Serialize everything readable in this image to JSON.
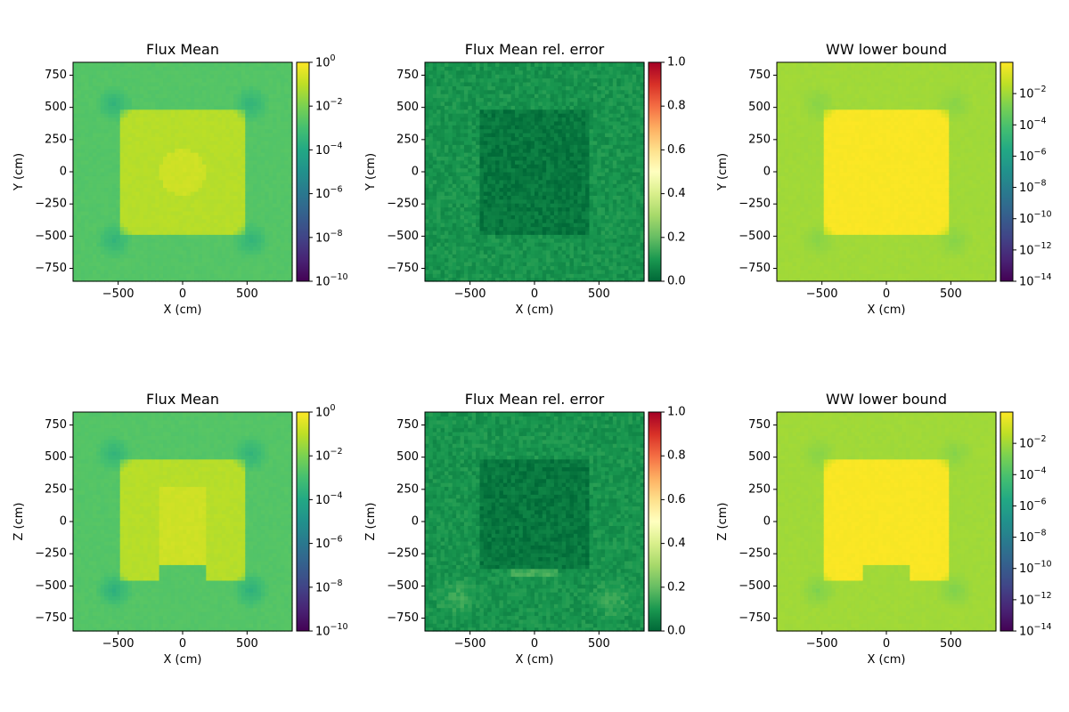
{
  "chart_data": [
    {
      "type": "heatmap",
      "title": "Flux Mean",
      "xlabel": "X (cm)",
      "ylabel": "Y (cm)",
      "xlim": [
        -850,
        850
      ],
      "ylim": [
        -850,
        850
      ],
      "xticks": [
        -500,
        0,
        500
      ],
      "yticks": [
        -750,
        -500,
        -250,
        0,
        250,
        500,
        750
      ],
      "colormap": "viridis",
      "colorbar": {
        "scale": "log",
        "range_exp": [
          -10,
          0
        ],
        "tick_exps": [
          -10,
          -8,
          -6,
          -4,
          -2,
          0
        ],
        "base": "10"
      },
      "regions": [
        {
          "shape": "background",
          "value": 0.002
        },
        {
          "shape": "rect",
          "x": [
            -480,
            480
          ],
          "y": [
            -480,
            480
          ],
          "value": 0.08
        },
        {
          "shape": "circle",
          "center": [
            0,
            0
          ],
          "radius": 175,
          "value": 0.18
        },
        {
          "shape": "spot",
          "center": [
            -530,
            530
          ],
          "radius": 150,
          "value": 0.0003
        },
        {
          "shape": "spot",
          "center": [
            530,
            530
          ],
          "radius": 150,
          "value": 0.0003
        },
        {
          "shape": "spot",
          "center": [
            -530,
            -530
          ],
          "radius": 150,
          "value": 0.0003
        },
        {
          "shape": "spot",
          "center": [
            530,
            -530
          ],
          "radius": 150,
          "value": 0.0003
        }
      ]
    },
    {
      "type": "heatmap",
      "title": "Flux Mean rel. error",
      "xlabel": "X (cm)",
      "ylabel": "Y (cm)",
      "xlim": [
        -850,
        850
      ],
      "ylim": [
        -850,
        850
      ],
      "xticks": [
        -500,
        0,
        500
      ],
      "yticks": [
        -750,
        -500,
        -250,
        0,
        250,
        500,
        750
      ],
      "colormap": "RdYlGn_r",
      "colorbar": {
        "scale": "linear",
        "range": [
          0,
          1
        ],
        "ticks": [
          "0.0",
          "0.2",
          "0.4",
          "0.6",
          "0.8",
          "1.0"
        ]
      },
      "regions": [
        {
          "shape": "background",
          "value": 0.09
        },
        {
          "shape": "rect",
          "x": [
            -420,
            420
          ],
          "y": [
            -480,
            480
          ],
          "value": 0.03
        }
      ]
    },
    {
      "type": "heatmap",
      "title": "WW lower bound",
      "xlabel": "X (cm)",
      "ylabel": "Y (cm)",
      "xlim": [
        -850,
        850
      ],
      "ylim": [
        -850,
        850
      ],
      "xticks": [
        -500,
        0,
        500
      ],
      "yticks": [
        -750,
        -500,
        -250,
        0,
        250,
        500,
        750
      ],
      "colormap": "viridis",
      "colorbar": {
        "scale": "log",
        "range_exp": [
          -14,
          0
        ],
        "tick_exps": [
          -14,
          -12,
          -10,
          -8,
          -6,
          -4,
          -2
        ],
        "base": "10"
      },
      "regions": [
        {
          "shape": "background",
          "value": 0.01
        },
        {
          "shape": "rect",
          "x": [
            -480,
            480
          ],
          "y": [
            -480,
            480
          ],
          "value": 0.8
        },
        {
          "shape": "spot",
          "center": [
            -530,
            530
          ],
          "radius": 150,
          "value": 0.003
        },
        {
          "shape": "spot",
          "center": [
            530,
            530
          ],
          "radius": 150,
          "value": 0.003
        },
        {
          "shape": "spot",
          "center": [
            -530,
            -530
          ],
          "radius": 150,
          "value": 0.003
        },
        {
          "shape": "spot",
          "center": [
            530,
            -530
          ],
          "radius": 150,
          "value": 0.003
        }
      ]
    },
    {
      "type": "heatmap",
      "title": "Flux Mean",
      "xlabel": "X (cm)",
      "ylabel": "Z (cm)",
      "xlim": [
        -850,
        850
      ],
      "ylim": [
        -850,
        850
      ],
      "xticks": [
        -500,
        0,
        500
      ],
      "yticks": [
        -750,
        -500,
        -250,
        0,
        250,
        500,
        750
      ],
      "colormap": "viridis",
      "colorbar": {
        "scale": "log",
        "range_exp": [
          -10,
          0
        ],
        "tick_exps": [
          -10,
          -8,
          -6,
          -4,
          -2,
          0
        ],
        "base": "10"
      },
      "regions": [
        {
          "shape": "background",
          "value": 0.002
        },
        {
          "shape": "rect",
          "x": [
            -480,
            480
          ],
          "y": [
            -450,
            480
          ],
          "value": 0.08
        },
        {
          "shape": "rect",
          "x": [
            -175,
            175
          ],
          "y": [
            -320,
            270
          ],
          "value": 0.18
        },
        {
          "shape": "rect",
          "x": [
            -180,
            180
          ],
          "y": [
            -450,
            -340
          ],
          "value": 0.002
        },
        {
          "shape": "spot",
          "center": [
            -530,
            530
          ],
          "radius": 150,
          "value": 0.0003
        },
        {
          "shape": "spot",
          "center": [
            530,
            530
          ],
          "radius": 150,
          "value": 0.0003
        },
        {
          "shape": "spot",
          "center": [
            -530,
            -530
          ],
          "radius": 150,
          "value": 0.0002
        },
        {
          "shape": "spot",
          "center": [
            530,
            -530
          ],
          "radius": 150,
          "value": 0.0002
        }
      ]
    },
    {
      "type": "heatmap",
      "title": "Flux Mean rel. error",
      "xlabel": "X (cm)",
      "ylabel": "Z (cm)",
      "xlim": [
        -850,
        850
      ],
      "ylim": [
        -850,
        850
      ],
      "xticks": [
        -500,
        0,
        500
      ],
      "yticks": [
        -750,
        -500,
        -250,
        0,
        250,
        500,
        750
      ],
      "colormap": "RdYlGn_r",
      "colorbar": {
        "scale": "linear",
        "range": [
          0,
          1
        ],
        "ticks": [
          "0.0",
          "0.2",
          "0.4",
          "0.6",
          "0.8",
          "1.0"
        ]
      },
      "regions": [
        {
          "shape": "background",
          "value": 0.09
        },
        {
          "shape": "rect",
          "x": [
            -420,
            420
          ],
          "y": [
            -350,
            480
          ],
          "value": 0.03
        },
        {
          "shape": "rect",
          "x": [
            -180,
            180
          ],
          "y": [
            -420,
            -350
          ],
          "value": 0.15
        },
        {
          "shape": "spot",
          "center": [
            -600,
            -600
          ],
          "radius": 200,
          "value": 0.16
        },
        {
          "shape": "spot",
          "center": [
            600,
            -600
          ],
          "radius": 200,
          "value": 0.16
        }
      ]
    },
    {
      "type": "heatmap",
      "title": "WW lower bound",
      "xlabel": "X (cm)",
      "ylabel": "Z (cm)",
      "xlim": [
        -850,
        850
      ],
      "ylim": [
        -850,
        850
      ],
      "xticks": [
        -500,
        0,
        500
      ],
      "yticks": [
        -750,
        -500,
        -250,
        0,
        250,
        500,
        750
      ],
      "colormap": "viridis",
      "colorbar": {
        "scale": "log",
        "range_exp": [
          -14,
          0
        ],
        "tick_exps": [
          -14,
          -12,
          -10,
          -8,
          -6,
          -4,
          -2
        ],
        "base": "10"
      },
      "regions": [
        {
          "shape": "background",
          "value": 0.01
        },
        {
          "shape": "rect",
          "x": [
            -480,
            480
          ],
          "y": [
            -450,
            480
          ],
          "value": 0.8
        },
        {
          "shape": "rect",
          "x": [
            -180,
            180
          ],
          "y": [
            -450,
            -340
          ],
          "value": 0.01
        },
        {
          "shape": "spot",
          "center": [
            -530,
            530
          ],
          "radius": 150,
          "value": 0.003
        },
        {
          "shape": "spot",
          "center": [
            530,
            530
          ],
          "radius": 150,
          "value": 0.003
        },
        {
          "shape": "spot",
          "center": [
            -530,
            -530
          ],
          "radius": 150,
          "value": 0.002
        },
        {
          "shape": "spot",
          "center": [
            530,
            -530
          ],
          "radius": 150,
          "value": 0.002
        }
      ]
    }
  ]
}
